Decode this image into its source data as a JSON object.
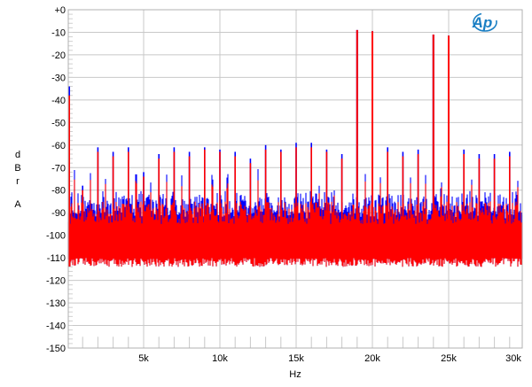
{
  "chart_data": {
    "type": "line",
    "title": "",
    "xlabel": "Hz",
    "ylabel_letters": [
      "d",
      "B",
      "r",
      "A"
    ],
    "xlim": [
      0,
      30000
    ],
    "ylim": [
      -150,
      0
    ],
    "grid": true,
    "x_ticks": [
      {
        "value": 5000,
        "label": "5k"
      },
      {
        "value": 10000,
        "label": "10k"
      },
      {
        "value": 15000,
        "label": "15k"
      },
      {
        "value": 20000,
        "label": "20k"
      },
      {
        "value": 25000,
        "label": "25k"
      },
      {
        "value": 30000,
        "label": "30k"
      }
    ],
    "y_ticks": [
      {
        "value": 0,
        "label": "+0"
      },
      {
        "value": -10,
        "label": "-10"
      },
      {
        "value": -20,
        "label": "-20"
      },
      {
        "value": -30,
        "label": "-30"
      },
      {
        "value": -40,
        "label": "-40"
      },
      {
        "value": -50,
        "label": "-50"
      },
      {
        "value": -60,
        "label": "-60"
      },
      {
        "value": -70,
        "label": "-70"
      },
      {
        "value": -80,
        "label": "-80"
      },
      {
        "value": -90,
        "label": "-90"
      },
      {
        "value": -100,
        "label": "-100"
      },
      {
        "value": -110,
        "label": "-110"
      },
      {
        "value": -120,
        "label": "-120"
      },
      {
        "value": -130,
        "label": "-130"
      },
      {
        "value": -140,
        "label": "-140"
      },
      {
        "value": -150,
        "label": "-150"
      }
    ],
    "noise_floor_db": -112,
    "noise_top_db": [
      -95,
      -85
    ],
    "series": [
      {
        "color": "#0000ff",
        "dc_level": -34,
        "spurs_hz": [
          1000,
          2000,
          3000,
          4000,
          5000,
          6000,
          7000,
          8000,
          9000,
          10000,
          11000,
          12000,
          13000,
          14000,
          15000,
          16000,
          17000,
          18000,
          19000,
          20000,
          21000,
          22000,
          23000,
          24000,
          25000,
          26000,
          27000,
          28000,
          29000
        ],
        "spurs_db": [
          -78,
          -61,
          -63,
          -61,
          -72,
          -64,
          -61,
          -63,
          -61,
          -62,
          -63,
          -66,
          -60,
          -62,
          -59,
          -59,
          -62,
          -64,
          -9,
          -9.5,
          -61,
          -63,
          -62,
          -11,
          -11.5,
          -62,
          -64,
          -64,
          -63
        ]
      },
      {
        "color": "#ff0000",
        "dc_level": -38,
        "spurs_hz": [
          1000,
          2000,
          3000,
          4000,
          5000,
          6000,
          7000,
          8000,
          9000,
          10000,
          11000,
          12000,
          13000,
          14000,
          15000,
          16000,
          17000,
          18000,
          19000,
          20000,
          21000,
          22000,
          23000,
          24000,
          25000,
          26000,
          27000,
          28000,
          29000
        ],
        "spurs_db": [
          -80,
          -63,
          -65,
          -63,
          -74,
          -66,
          -63,
          -65,
          -62,
          -63,
          -65,
          -68,
          -62,
          -63,
          -61,
          -61,
          -63,
          -66,
          -9,
          -9.5,
          -63,
          -65,
          -64,
          -11,
          -11.5,
          -64,
          -66,
          -66,
          -65
        ]
      }
    ]
  },
  "logo": {
    "text": "Ap",
    "color": "#1a7fc4"
  }
}
